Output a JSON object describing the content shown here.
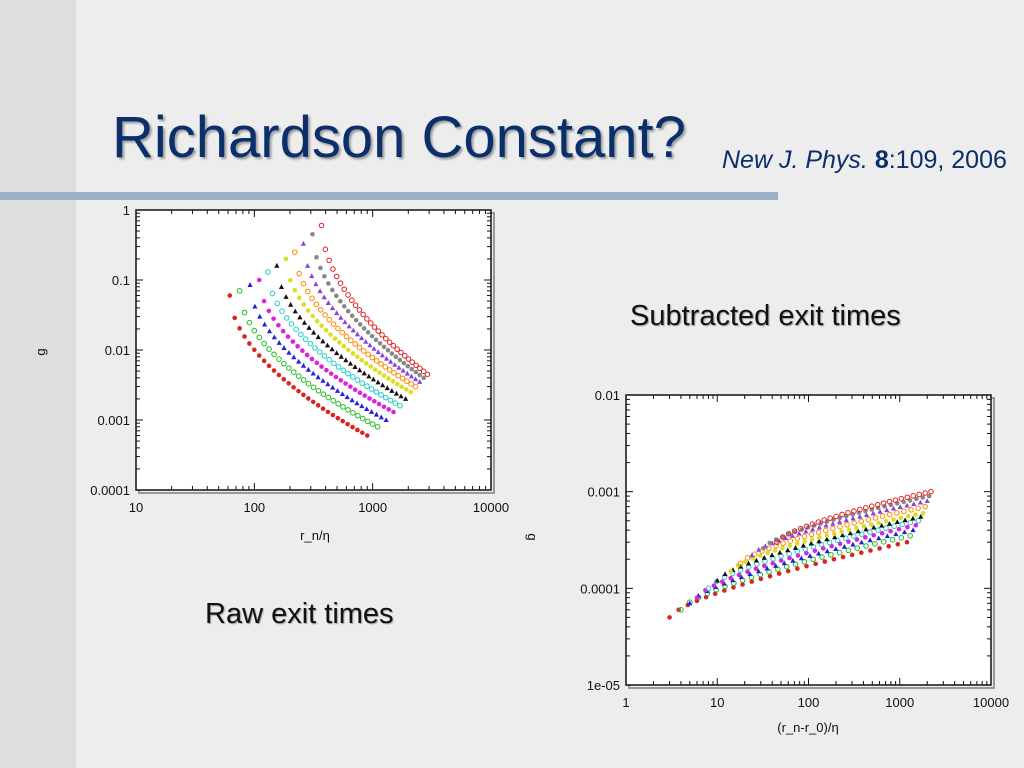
{
  "slide": {
    "title": "Richardson Constant?",
    "citation": {
      "journal": "New J. Phys.",
      "volume": "8",
      "rest": ":109, 2006"
    }
  },
  "captions": {
    "subtracted": "Subtracted exit times",
    "raw": "Raw exit times"
  },
  "colors": {
    "title": "#0b2f6b",
    "series": [
      "#dd2222",
      "#22bb22",
      "#2222dd",
      "#dd22dd",
      "#22cccc",
      "#111111",
      "#dddd22",
      "#ff8800",
      "#8844dd",
      "#888888"
    ]
  },
  "chart_data": [
    {
      "type": "scatter",
      "id": "raw",
      "x_scale": "log",
      "y_scale": "log",
      "xlim": [
        10,
        10000
      ],
      "ylim": [
        0.0001,
        1
      ],
      "x_ticks": [
        "10",
        "100",
        "1000",
        "10000"
      ],
      "y_ticks": [
        "0.0001",
        "0.001",
        "0.01",
        "0.1",
        "1"
      ],
      "xlabel": "r_n/η",
      "ylabel": "g",
      "grid": false,
      "series_count": 11,
      "curve_family": {
        "x_start": [
          62,
          75,
          92,
          110,
          130,
          155,
          185,
          220,
          260,
          310,
          370
        ],
        "y_start": [
          0.06,
          0.07,
          0.085,
          0.1,
          0.13,
          0.16,
          0.2,
          0.25,
          0.33,
          0.45,
          0.6
        ],
        "x_end": [
          900,
          1100,
          1300,
          1500,
          1700,
          1900,
          2100,
          2300,
          2500,
          2700,
          2900
        ],
        "y_min": [
          0.0006,
          0.0008,
          0.001,
          0.0013,
          0.0016,
          0.002,
          0.0025,
          0.003,
          0.0035,
          0.004,
          0.0045
        ]
      }
    },
    {
      "type": "scatter",
      "id": "subtracted",
      "x_scale": "log",
      "y_scale": "log",
      "xlim": [
        1,
        10000
      ],
      "ylim": [
        1e-05,
        0.01
      ],
      "x_ticks": [
        "1",
        "10",
        "100",
        "1000",
        "10000"
      ],
      "y_ticks": [
        "1e-05",
        "0.0001",
        "0.001",
        "0.01"
      ],
      "xlabel": "(r_n-r_0)/η",
      "ylabel": "g",
      "grid": false,
      "series_count": 11,
      "curve_family": {
        "x_start": [
          3,
          4,
          5,
          6,
          8,
          10,
          14,
          18,
          24,
          32,
          45
        ],
        "x_end": [
          1200,
          1300,
          1400,
          1500,
          1600,
          1700,
          1800,
          1900,
          2000,
          2100,
          2200
        ],
        "y_start": [
          5e-05,
          6e-05,
          7e-05,
          8e-05,
          0.0001,
          0.00012,
          0.00015,
          0.00018,
          0.00022,
          0.00026,
          0.0003
        ],
        "y_end": [
          0.0003,
          0.00035,
          0.0004,
          0.00045,
          0.0005,
          0.00055,
          0.0006,
          0.0007,
          0.0008,
          0.0009,
          0.001
        ]
      }
    }
  ]
}
